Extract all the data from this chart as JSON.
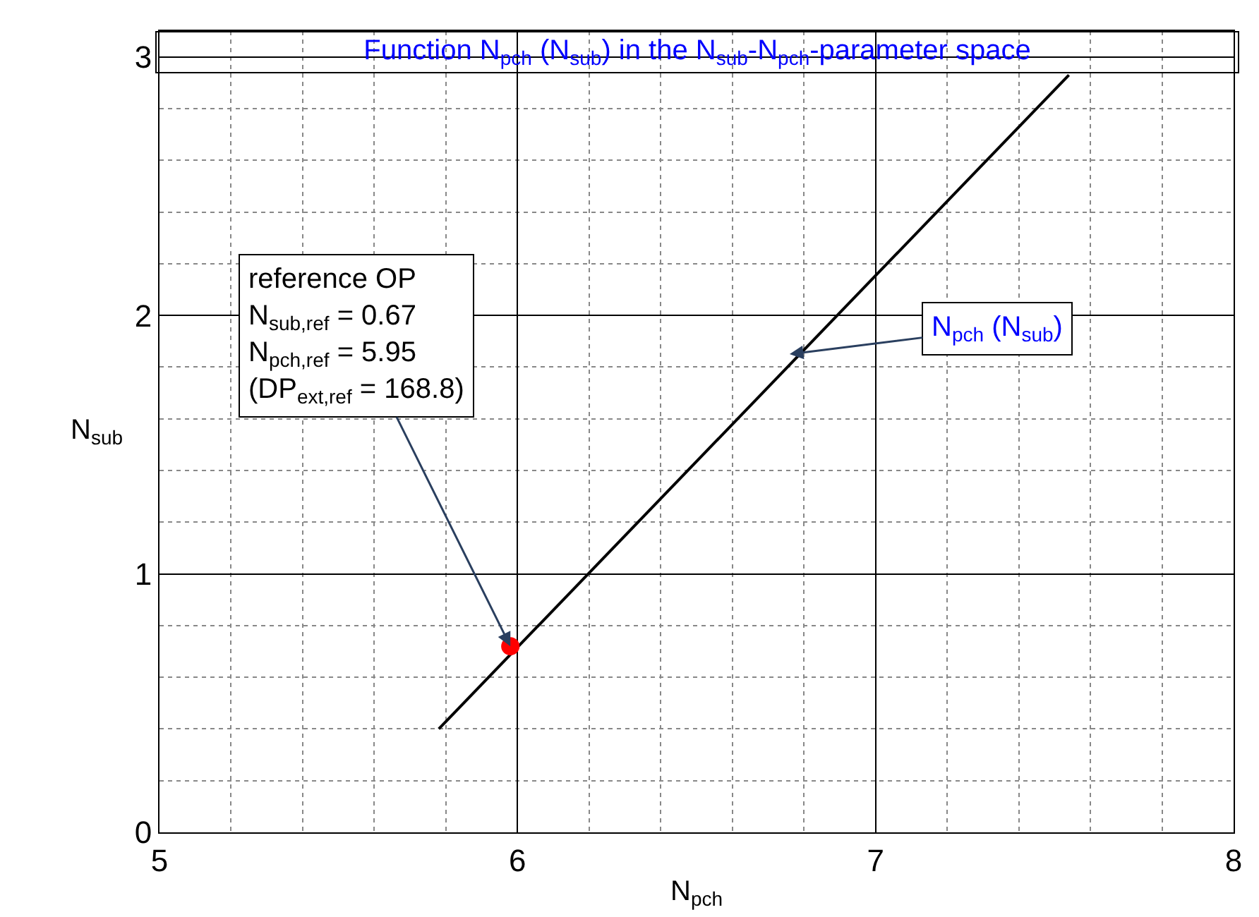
{
  "chart_data": {
    "type": "line",
    "title": "Function N$_{pch}$ (N$_{sub}$) in the N$_{sub}$-N$_{pch}$-parameter space",
    "xlabel": "N$_{pch}$",
    "ylabel": "N$_{sub}$",
    "series": [
      {
        "color": "#000000",
        "x": [
          5.78,
          7.54
        ],
        "values": [
          0.4,
          2.93
        ],
        "marker": "none"
      },
      {
        "type": "scatter",
        "color": "#ff0000",
        "x": [
          5.98
        ],
        "values": [
          0.72
        ],
        "marker": "circle"
      }
    ],
    "annotations": [
      "reference OP\nN$_{sub,ref}$ = 0.67\nN$_{pch,ref}$ = 5.95\n(DP$_{ext,ref}$ = 168.8)",
      {
        "text": "N$_{pch}$ (N$_{sub}$)",
        "x": 6.76,
        "y": 1.85
      }
    ],
    "xlim": [
      5,
      8
    ],
    "xticks": [
      5,
      6,
      7,
      8
    ],
    "ylim": [
      0,
      3.1
    ],
    "yticks": [
      0,
      1,
      2,
      3
    ],
    "grid": true
  }
}
